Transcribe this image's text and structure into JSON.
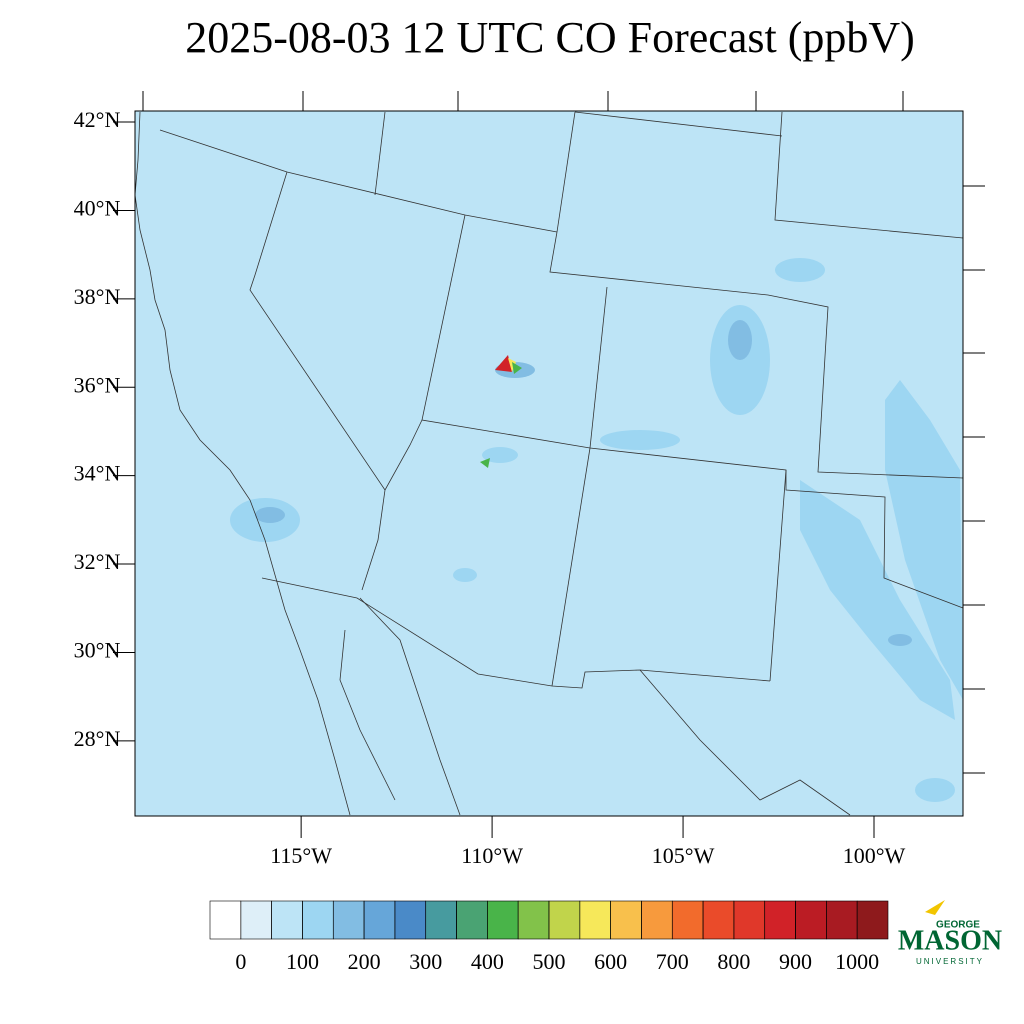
{
  "title": "2025-08-03 12 UTC CO Forecast (ppbV)",
  "map": {
    "latlim": [
      26.3,
      42.25
    ],
    "lonlim": [
      -119.35,
      -97.67
    ],
    "lat_ticks": [
      {
        "value": 42,
        "label": "42°N"
      },
      {
        "value": 40,
        "label": "40°N"
      },
      {
        "value": 38,
        "label": "38°N"
      },
      {
        "value": 36,
        "label": "36°N"
      },
      {
        "value": 34,
        "label": "34°N"
      },
      {
        "value": 32,
        "label": "32°N"
      },
      {
        "value": 30,
        "label": "30°N"
      },
      {
        "value": 28,
        "label": "28°N"
      }
    ],
    "lon_ticks": [
      {
        "value": -115,
        "label": "115°W"
      },
      {
        "value": -110,
        "label": "110°W"
      },
      {
        "value": -105,
        "label": "105°W"
      },
      {
        "value": -100,
        "label": "100°W"
      }
    ]
  },
  "colorbar": {
    "levels": [
      0,
      50,
      100,
      150,
      200,
      250,
      300,
      350,
      400,
      450,
      500,
      550,
      600,
      650,
      700,
      750,
      800,
      850,
      900,
      950,
      1000
    ],
    "colors": [
      "#ffffff",
      "#deeff8",
      "#bde4f6",
      "#9dd6f2",
      "#82bde3",
      "#66a6d9",
      "#4a8ac8",
      "#479b9f",
      "#4aa373",
      "#49b449",
      "#82c24a",
      "#c1d44b",
      "#f6e85a",
      "#f8c04c",
      "#f79a3d",
      "#f26b2c",
      "#ea4b2a",
      "#e0382a",
      "#d12228",
      "#bb1c24",
      "#a81b22",
      "#8e1a1c"
    ],
    "ticks": [
      0,
      100,
      200,
      300,
      400,
      500,
      600,
      700,
      800,
      900,
      1000
    ]
  },
  "logo": {
    "top": "GEORGE",
    "name": "MASON",
    "bottom": "UNIVERSITY"
  }
}
